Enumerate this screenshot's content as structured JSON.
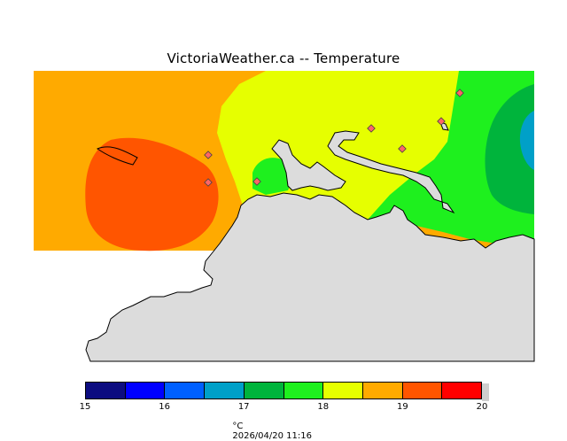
{
  "title": "VictoriaWeather.ca -- Temperature",
  "legend": {
    "ticks": [
      "15",
      "16",
      "17",
      "18",
      "19",
      "20"
    ],
    "colors": [
      "#0c0c80",
      "#0000ff",
      "#0060ff",
      "#00a0c8",
      "#00b43c",
      "#1ef01e",
      "#e6ff00",
      "#ffaa00",
      "#ff5500",
      "#ff0000"
    ],
    "unit": "°C",
    "timestamp": "2026/04/20 11:16"
  },
  "map_colors": {
    "land": "#dcdcdc",
    "band_17_18": "#1ef01e",
    "band_18_185": "#e6ff00",
    "band_185_19": "#ffaa00",
    "band_19_195": "#ff5500",
    "band_165_17": "#00b43c",
    "band_16_165": "#00a0c8"
  },
  "stations_count_label": ""
}
